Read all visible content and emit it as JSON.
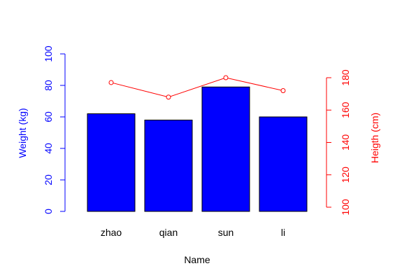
{
  "chart_data": {
    "type": "bar",
    "categories": [
      "zhao",
      "qian",
      "sun",
      "li"
    ],
    "xlabel": "Name",
    "series": [
      {
        "name": "Weight (kg)",
        "type": "bar",
        "axis": "left",
        "color": "#0000ff",
        "values": [
          62,
          58,
          79,
          60
        ]
      },
      {
        "name": "Heigth (cm)",
        "type": "line",
        "axis": "right",
        "color": "#ff0000",
        "marker": "open-circle",
        "values": [
          177,
          168,
          180,
          172
        ]
      }
    ],
    "y_left": {
      "label": "Weight (kg)",
      "ylim": [
        0,
        100
      ],
      "ticks": [
        "0",
        "20",
        "40",
        "60",
        "80",
        "100"
      ],
      "color": "#0000ff"
    },
    "y_right": {
      "label": "Heigth (cm)",
      "ylim": [
        100,
        180
      ],
      "ticks": [
        "100",
        "120",
        "140",
        "160",
        "180"
      ],
      "color": "#ff0000"
    },
    "grid": false,
    "legend": "none"
  }
}
